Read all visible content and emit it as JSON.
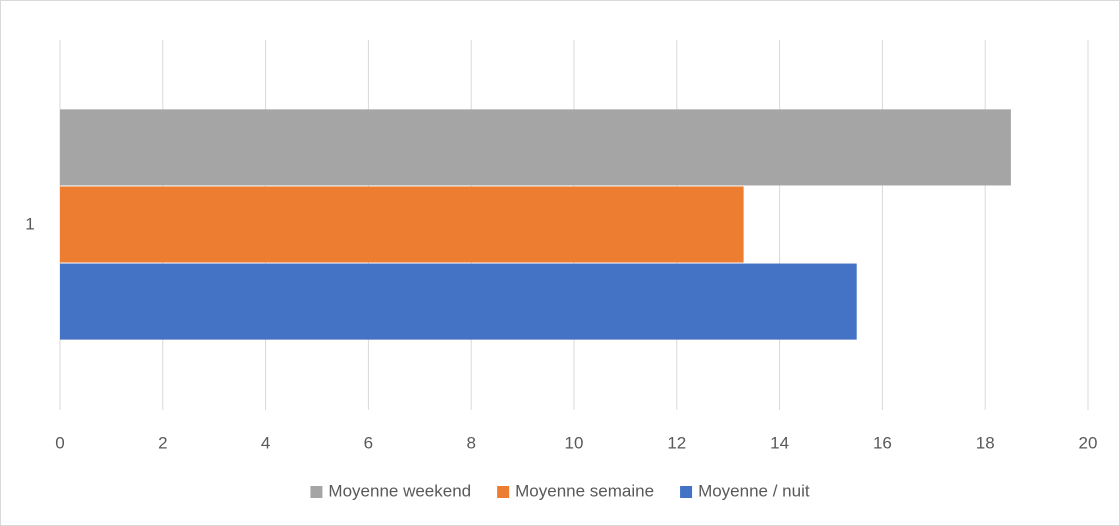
{
  "chart_data": {
    "type": "hbar",
    "categories": [
      "1"
    ],
    "series": [
      {
        "name": "Moyenne weekend",
        "color": "#a5a5a5",
        "values": [
          18.5
        ]
      },
      {
        "name": "Moyenne semaine",
        "color": "#ed7d31",
        "values": [
          13.3
        ]
      },
      {
        "name": "Moyenne / nuit",
        "color": "#4472c4",
        "values": [
          15.5
        ]
      }
    ],
    "xlim": [
      0,
      20
    ],
    "xticks": [
      0,
      2,
      4,
      6,
      8,
      10,
      12,
      14,
      16,
      18,
      20
    ],
    "grid": true,
    "legend": "bottom"
  }
}
